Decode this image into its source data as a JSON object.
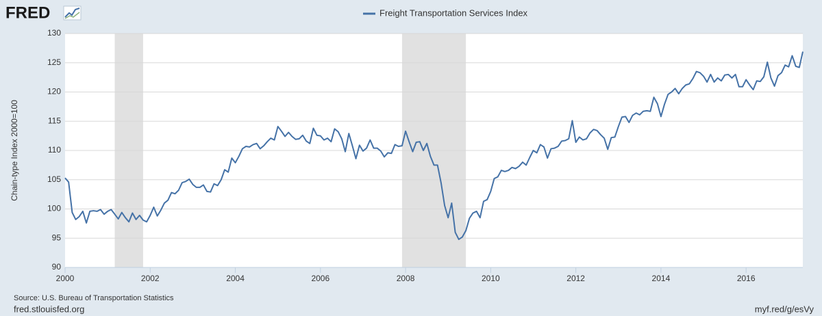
{
  "logo": "FRED",
  "site": "fred.stlouisfed.org",
  "short_url": "myf.red/g/esVy",
  "chart_data": {
    "type": "line",
    "y_label": "Chain-type Index 2000=100",
    "source": "Source: U.S. Bureau of Transportation Statistics",
    "xlim": [
      2000,
      2017.333
    ],
    "xticks": [
      2000,
      2002,
      2004,
      2006,
      2008,
      2010,
      2012,
      2014,
      2016
    ],
    "ylim": [
      90,
      130
    ],
    "yticks": [
      90,
      95,
      100,
      105,
      110,
      115,
      120,
      125,
      130
    ],
    "grid": true,
    "recessions": [
      [
        2001.167,
        2001.833
      ],
      [
        2007.917,
        2009.417
      ]
    ],
    "recession_color": "#e1e1e1",
    "x": [
      2000.0,
      2000.083,
      2000.167,
      2000.25,
      2000.333,
      2000.417,
      2000.5,
      2000.583,
      2000.667,
      2000.75,
      2000.833,
      2000.917,
      2001.0,
      2001.083,
      2001.167,
      2001.25,
      2001.333,
      2001.417,
      2001.5,
      2001.583,
      2001.667,
      2001.75,
      2001.833,
      2001.917,
      2002.0,
      2002.083,
      2002.167,
      2002.25,
      2002.333,
      2002.417,
      2002.5,
      2002.583,
      2002.667,
      2002.75,
      2002.833,
      2002.917,
      2003.0,
      2003.083,
      2003.167,
      2003.25,
      2003.333,
      2003.417,
      2003.5,
      2003.583,
      2003.667,
      2003.75,
      2003.833,
      2003.917,
      2004.0,
      2004.083,
      2004.167,
      2004.25,
      2004.333,
      2004.417,
      2004.5,
      2004.583,
      2004.667,
      2004.75,
      2004.833,
      2004.917,
      2005.0,
      2005.083,
      2005.167,
      2005.25,
      2005.333,
      2005.417,
      2005.5,
      2005.583,
      2005.667,
      2005.75,
      2005.833,
      2005.917,
      2006.0,
      2006.083,
      2006.167,
      2006.25,
      2006.333,
      2006.417,
      2006.5,
      2006.583,
      2006.667,
      2006.75,
      2006.833,
      2006.917,
      2007.0,
      2007.083,
      2007.167,
      2007.25,
      2007.333,
      2007.417,
      2007.5,
      2007.583,
      2007.667,
      2007.75,
      2007.833,
      2007.917,
      2008.0,
      2008.083,
      2008.167,
      2008.25,
      2008.333,
      2008.417,
      2008.5,
      2008.583,
      2008.667,
      2008.75,
      2008.833,
      2008.917,
      2009.0,
      2009.083,
      2009.167,
      2009.25,
      2009.333,
      2009.417,
      2009.5,
      2009.583,
      2009.667,
      2009.75,
      2009.833,
      2009.917,
      2010.0,
      2010.083,
      2010.167,
      2010.25,
      2010.333,
      2010.417,
      2010.5,
      2010.583,
      2010.667,
      2010.75,
      2010.833,
      2010.917,
      2011.0,
      2011.083,
      2011.167,
      2011.25,
      2011.333,
      2011.417,
      2011.5,
      2011.583,
      2011.667,
      2011.75,
      2011.833,
      2011.917,
      2012.0,
      2012.083,
      2012.167,
      2012.25,
      2012.333,
      2012.417,
      2012.5,
      2012.583,
      2012.667,
      2012.75,
      2012.833,
      2012.917,
      2013.0,
      2013.083,
      2013.167,
      2013.25,
      2013.333,
      2013.417,
      2013.5,
      2013.583,
      2013.667,
      2013.75,
      2013.833,
      2013.917,
      2014.0,
      2014.083,
      2014.167,
      2014.25,
      2014.333,
      2014.417,
      2014.5,
      2014.583,
      2014.667,
      2014.75,
      2014.833,
      2014.917,
      2015.0,
      2015.083,
      2015.167,
      2015.25,
      2015.333,
      2015.417,
      2015.5,
      2015.583,
      2015.667,
      2015.75,
      2015.833,
      2015.917,
      2016.0,
      2016.083,
      2016.167,
      2016.25,
      2016.333,
      2016.417,
      2016.5,
      2016.583,
      2016.667,
      2016.75,
      2016.833,
      2016.917,
      2017.0,
      2017.083,
      2017.167,
      2017.25,
      2017.333
    ],
    "series": [
      {
        "name": "Freight Transportation Services Index",
        "color": "#4572a7",
        "values": [
          105.3,
          104.6,
          99.4,
          98.2,
          98.7,
          99.6,
          97.6,
          99.6,
          99.7,
          99.6,
          99.9,
          99.1,
          99.6,
          99.9,
          99.1,
          98.3,
          99.4,
          98.5,
          97.8,
          99.3,
          98.2,
          98.9,
          98.1,
          97.8,
          98.9,
          100.3,
          98.8,
          99.8,
          101.0,
          101.5,
          102.8,
          102.6,
          103.2,
          104.5,
          104.7,
          105.1,
          104.2,
          103.7,
          103.7,
          104.1,
          103.0,
          102.9,
          104.3,
          104.0,
          105.0,
          106.7,
          106.3,
          108.7,
          107.9,
          109.0,
          110.3,
          110.7,
          110.6,
          111.0,
          111.2,
          110.3,
          110.8,
          111.5,
          112.1,
          111.8,
          114.1,
          113.3,
          112.4,
          113.1,
          112.4,
          111.9,
          112.0,
          112.6,
          111.6,
          111.2,
          113.8,
          112.6,
          112.5,
          111.8,
          112.1,
          111.5,
          113.7,
          113.2,
          112.0,
          109.8,
          112.9,
          110.8,
          108.6,
          110.9,
          109.9,
          110.4,
          111.8,
          110.4,
          110.4,
          109.9,
          108.9,
          109.6,
          109.5,
          111.0,
          110.7,
          110.8,
          113.3,
          111.5,
          109.8,
          111.4,
          111.5,
          110.0,
          111.2,
          109.0,
          107.5,
          107.5,
          104.5,
          100.6,
          98.5,
          101.0,
          96.0,
          94.8,
          95.2,
          96.3,
          98.4,
          99.3,
          99.6,
          98.5,
          101.3,
          101.6,
          103.0,
          105.2,
          105.5,
          106.6,
          106.4,
          106.6,
          107.1,
          106.9,
          107.3,
          108.0,
          107.5,
          108.8,
          110.0,
          109.6,
          111.0,
          110.6,
          108.7,
          110.3,
          110.4,
          110.7,
          111.6,
          111.7,
          112.0,
          115.1,
          111.4,
          112.3,
          111.8,
          112.0,
          113.0,
          113.6,
          113.4,
          112.7,
          112.1,
          110.2,
          112.2,
          112.3,
          114.1,
          115.7,
          115.8,
          114.8,
          116.0,
          116.4,
          116.1,
          116.7,
          116.8,
          116.7,
          119.1,
          118.0,
          115.8,
          117.9,
          119.6,
          120.0,
          120.6,
          119.7,
          120.6,
          121.2,
          121.4,
          122.3,
          123.5,
          123.3,
          122.7,
          121.7,
          123.0,
          121.7,
          122.4,
          121.9,
          122.9,
          123.0,
          122.4,
          123.0,
          120.9,
          120.9,
          122.1,
          121.2,
          120.4,
          121.9,
          121.8,
          122.6,
          125.1,
          122.4,
          121.0,
          122.8,
          123.3,
          124.6,
          124.3,
          126.2,
          124.4,
          124.2,
          126.9
        ]
      }
    ]
  }
}
